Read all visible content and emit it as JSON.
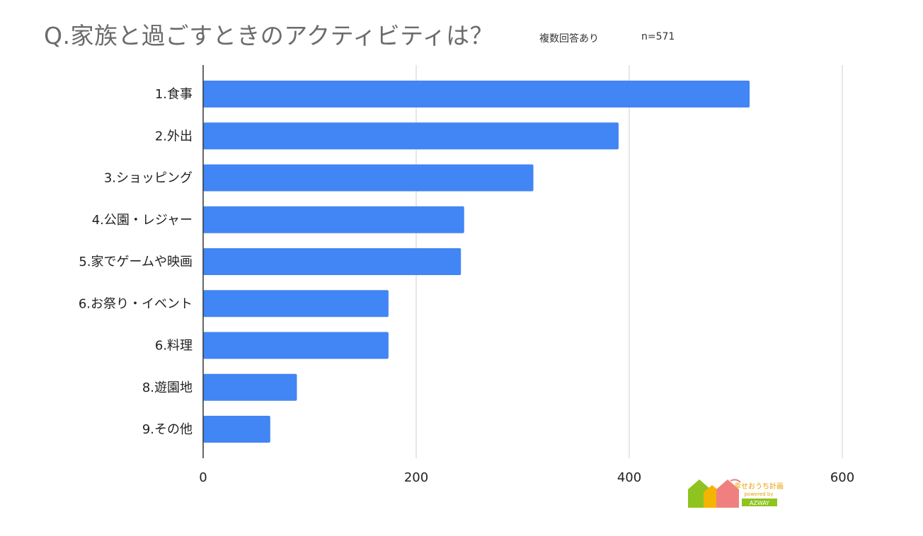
{
  "header": {
    "title": "Q.家族と過ごすときのアクティビティは？",
    "multi_answer_note": "複数回答あり",
    "sample_size": "n=571"
  },
  "chart_data": {
    "type": "bar",
    "orientation": "horizontal",
    "categories": [
      "1.食事",
      "2.外出",
      "3.ショッピング",
      "4.公園・レジャー",
      "5.家でゲームや映画",
      "6.お祭り・イベント",
      "6.料理",
      "8.遊園地",
      "9.その他"
    ],
    "values": [
      513,
      390,
      310,
      245,
      242,
      174,
      174,
      88,
      63
    ],
    "xlim": [
      0,
      600
    ],
    "xticks": [
      0,
      200,
      400,
      600
    ],
    "grid": true,
    "bar_color": "#4285f4"
  },
  "logo": {
    "name": "幸せおうち計画",
    "sub": "powered by",
    "brand": "AZWAY"
  }
}
